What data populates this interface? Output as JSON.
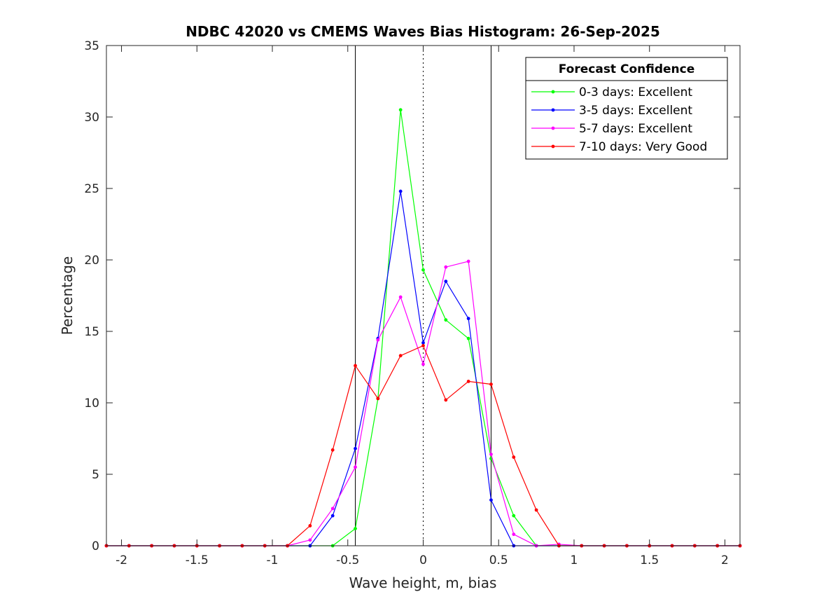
{
  "chart_data": {
    "type": "line",
    "title": "NDBC 42020 vs CMEMS Waves Bias Histogram: 26-Sep-2025",
    "xlabel": "Wave height, m, bias",
    "ylabel": "Percentage",
    "xlim": [
      -2.1,
      2.1
    ],
    "ylim": [
      0,
      35
    ],
    "xticks": [
      -2,
      -1.5,
      -1,
      -0.5,
      0,
      0.5,
      1,
      1.5,
      2
    ],
    "xtick_labels": [
      "-2",
      "-1.5",
      "-1",
      "-0.5",
      "0",
      "0.5",
      "1",
      "1.5",
      "2"
    ],
    "yticks": [
      0,
      5,
      10,
      15,
      20,
      25,
      30,
      35
    ],
    "ytick_labels": [
      "0",
      "5",
      "10",
      "15",
      "20",
      "25",
      "30",
      "35"
    ],
    "reference_lines": [
      {
        "x": -0.45,
        "style": "solid"
      },
      {
        "x": 0,
        "style": "dotted"
      },
      {
        "x": 0.45,
        "style": "solid"
      }
    ],
    "x": [
      -2.1,
      -1.95,
      -1.8,
      -1.65,
      -1.5,
      -1.35,
      -1.2,
      -1.05,
      -0.9,
      -0.75,
      -0.6,
      -0.45,
      -0.3,
      -0.15,
      0,
      0.15,
      0.3,
      0.45,
      0.6,
      0.75,
      0.9,
      1.05,
      1.2,
      1.35,
      1.5,
      1.65,
      1.8,
      1.95,
      2.1
    ],
    "series": [
      {
        "name": "0-3 days: Excellent",
        "color": "#00ff00",
        "values": [
          0,
          0,
          0,
          0,
          0,
          0,
          0,
          0,
          0,
          0,
          0,
          1.2,
          10.3,
          30.5,
          19.3,
          15.8,
          14.5,
          6.1,
          2.1,
          0,
          0,
          0,
          0,
          0,
          0,
          0,
          0,
          0,
          0
        ]
      },
      {
        "name": "3-5 days: Excellent",
        "color": "#0000ff",
        "values": [
          0,
          0,
          0,
          0,
          0,
          0,
          0,
          0,
          0,
          0,
          2.1,
          6.8,
          14.5,
          24.8,
          14.2,
          18.5,
          15.9,
          3.2,
          0,
          0,
          0,
          0,
          0,
          0,
          0,
          0,
          0,
          0,
          0
        ]
      },
      {
        "name": "5-7 days: Excellent",
        "color": "#ff00ff",
        "values": [
          0,
          0,
          0,
          0,
          0,
          0,
          0,
          0,
          0,
          0.4,
          2.6,
          5.5,
          14.4,
          17.4,
          12.7,
          19.5,
          19.9,
          6.4,
          0.8,
          0,
          0.1,
          0,
          0,
          0,
          0,
          0,
          0,
          0,
          0
        ]
      },
      {
        "name": "7-10 days: Very Good",
        "color": "#ff0000",
        "values": [
          0,
          0,
          0,
          0,
          0,
          0,
          0,
          0,
          0,
          1.4,
          6.7,
          12.6,
          10.3,
          13.3,
          14.0,
          10.2,
          11.5,
          11.3,
          6.2,
          2.5,
          0,
          0,
          0,
          0,
          0,
          0,
          0,
          0,
          0
        ]
      }
    ],
    "legend": {
      "title": "Forecast Confidence",
      "position": "top-right"
    }
  }
}
